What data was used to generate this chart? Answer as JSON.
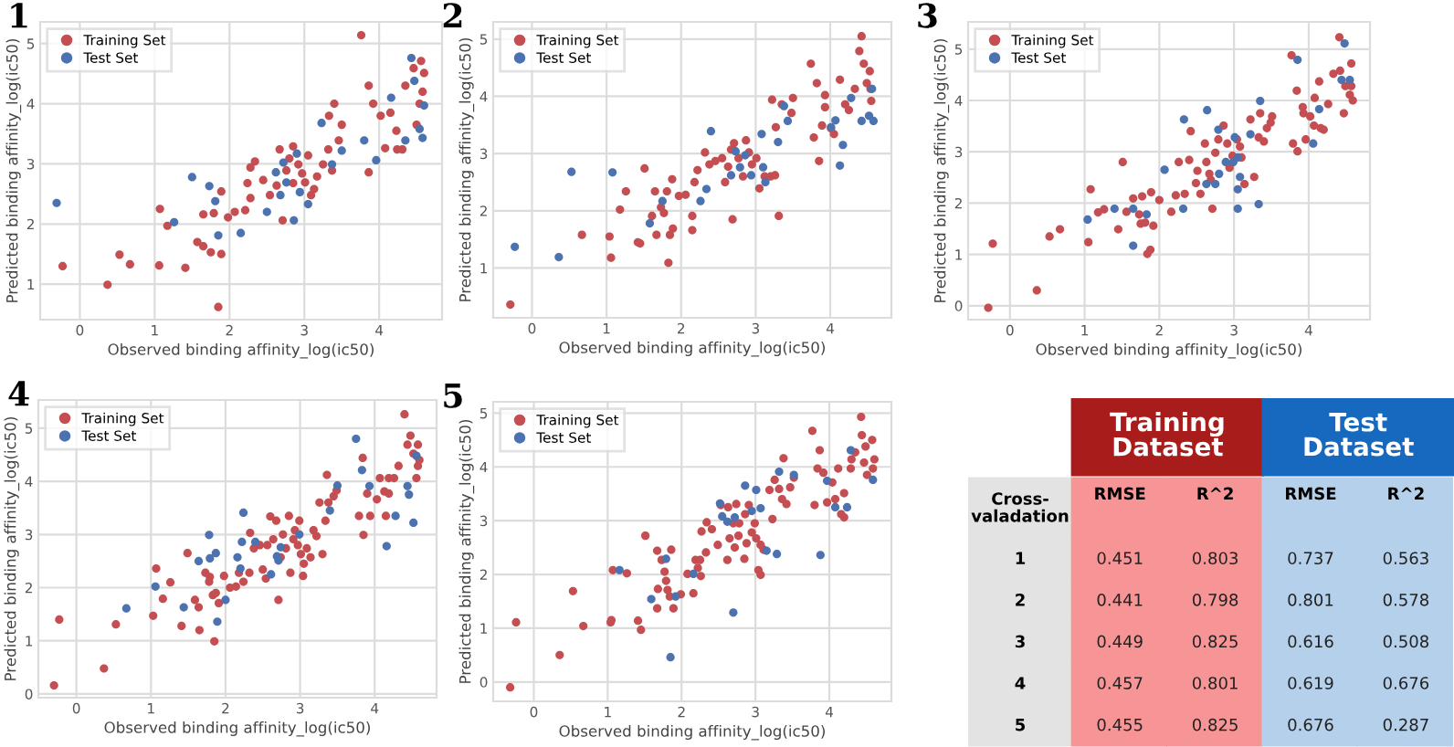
{
  "chart_data": [
    {
      "type": "scatter",
      "title": "1",
      "xlabel": "Observed binding affinity_log(ic50)",
      "ylabel": "Predicted binding affinity_log(ic50)",
      "xlim": [
        -0.53,
        4.84
      ],
      "ylim": [
        0.41,
        5.36
      ],
      "xticks": [
        0,
        1,
        2,
        3,
        4
      ],
      "yticks": [
        1,
        2,
        3,
        4,
        5
      ],
      "grid": true,
      "legend": "top left",
      "marker": "circle",
      "series": [
        {
          "name": "Training Set",
          "color": "#c44e52",
          "x": [
            -0.23,
            0.37,
            0.53,
            0.67,
            1.06,
            1.07,
            1.17,
            1.41,
            1.57,
            1.65,
            1.65,
            1.75,
            1.79,
            1.85,
            1.89,
            1.89,
            1.98,
            2.07,
            2.21,
            2.24,
            2.28,
            2.34,
            2.28,
            2.45,
            2.54,
            2.63,
            2.67,
            2.76,
            2.8,
            2.85,
            2.85,
            2.92,
            2.97,
            3.01,
            3.05,
            3.09,
            3.13,
            2.71,
            3.17,
            3.25,
            3.32,
            3.33,
            3.37,
            3.4,
            3.46,
            3.5,
            3.76,
            3.86,
            3.86,
            3.92,
            4.02,
            4.15,
            4.24,
            4.31,
            4.35,
            4.46,
            4.56,
            4.6,
            4.58,
            4.54,
            4.5,
            4.23,
            4.08
          ],
          "values": [
            1.3,
            0.99,
            1.49,
            1.33,
            1.31,
            2.25,
            1.97,
            1.27,
            1.7,
            1.63,
            2.16,
            1.53,
            2.18,
            0.62,
            2.54,
            1.5,
            2.11,
            2.2,
            2.23,
            2.68,
            2.94,
            3.04,
            2.43,
            2.73,
            2.48,
            2.64,
            3.24,
            2.89,
            3.09,
            2.68,
            3.29,
            2.99,
            2.84,
            2.69,
            3.14,
            2.48,
            2.58,
            2.06,
            2.79,
            2.99,
            3.24,
            3.8,
            2.89,
            4.0,
            3.39,
            3.65,
            5.14,
            4.3,
            2.86,
            4.0,
            3.8,
            3.85,
            3.24,
            3.24,
            4.3,
            4.59,
            4.71,
            4.51,
            4.2,
            4.0,
            3.65,
            3.55,
            3.26
          ]
        },
        {
          "name": "Test Set",
          "color": "#4c72b0",
          "x": [
            -0.31,
            1.26,
            1.5,
            1.73,
            1.81,
            1.85,
            2.15,
            2.5,
            2.62,
            2.68,
            2.72,
            2.76,
            2.86,
            2.9,
            2.94,
            3.05,
            3.23,
            3.37,
            3.5,
            3.8,
            3.96,
            4.16,
            4.35,
            4.43,
            4.47,
            4.54,
            4.58,
            4.6
          ],
          "values": [
            2.35,
            2.03,
            2.78,
            2.63,
            2.38,
            1.81,
            1.85,
            2.2,
            2.86,
            2.48,
            3.02,
            2.69,
            2.06,
            3.17,
            2.53,
            2.33,
            3.68,
            2.99,
            3.22,
            3.39,
            3.06,
            4.1,
            3.39,
            4.76,
            4.38,
            3.58,
            3.43,
            3.97
          ]
        }
      ]
    },
    {
      "type": "scatter",
      "title": "2",
      "xlabel": "Observed binding affinity_log(ic50)",
      "ylabel": "Predicted binding affinity_log(ic50)",
      "xlim": [
        -0.52,
        4.82
      ],
      "ylim": [
        0.13,
        5.3
      ],
      "xticks": [
        0,
        1,
        2,
        3,
        4
      ],
      "yticks": [
        1,
        2,
        3,
        4,
        5
      ],
      "grid": true,
      "legend": "top left",
      "marker": "circle",
      "series": [
        {
          "name": "Training Set",
          "color": "#c44e52",
          "x": [
            -0.29,
            0.67,
            1.04,
            1.06,
            1.18,
            1.26,
            1.42,
            1.45,
            1.51,
            1.61,
            1.65,
            1.67,
            1.73,
            1.77,
            1.81,
            1.85,
            1.83,
            1.88,
            1.89,
            1.97,
            2.06,
            2.15,
            2.15,
            2.18,
            2.22,
            2.32,
            2.38,
            2.46,
            2.55,
            2.59,
            2.63,
            2.67,
            2.71,
            2.69,
            2.77,
            2.83,
            2.87,
            2.91,
            2.95,
            3.01,
            3.05,
            3.12,
            3.2,
            3.22,
            3.26,
            3.27,
            3.31,
            3.35,
            3.48,
            3.5,
            3.74,
            3.78,
            3.82,
            3.85,
            3.89,
            3.93,
            3.93,
            4.01,
            4.05,
            4.13,
            4.2,
            4.25,
            4.33,
            4.39,
            4.42,
            4.45,
            4.49,
            4.53,
            4.55,
            4.54
          ],
          "values": [
            0.36,
            1.58,
            1.55,
            1.18,
            2.02,
            2.34,
            1.45,
            1.43,
            2.74,
            1.91,
            2.34,
            1.58,
            2.06,
            1.96,
            2.34,
            1.58,
            1.09,
            2.55,
            1.69,
            2.26,
            2.28,
            1.66,
            1.91,
            2.5,
            2.71,
            3.02,
            2.81,
            2.87,
            2.92,
            2.5,
            2.77,
            3.07,
            3.18,
            1.85,
            2.92,
            2.6,
            3.23,
            3.02,
            2.81,
            2.92,
            2.39,
            2.6,
            2.6,
            3.94,
            2.62,
            3.46,
            1.91,
            3.86,
            3.71,
            3.97,
            4.57,
            3.28,
            4.23,
            2.87,
            3.49,
            4.02,
            3.81,
            3.44,
            3.34,
            4.29,
            3.86,
            3.76,
            4.13,
            4.79,
            5.05,
            4.57,
            4.23,
            4.44,
            3.92,
            4.13
          ]
        },
        {
          "name": "Test Set",
          "color": "#4c72b0",
          "x": [
            -0.23,
            0.36,
            0.53,
            1.08,
            1.58,
            1.75,
            2.26,
            2.34,
            2.4,
            2.67,
            2.73,
            2.79,
            2.86,
            2.94,
            3.08,
            3.1,
            3.13,
            3.3,
            3.38,
            3.43,
            4.01,
            4.07,
            4.13,
            4.17,
            4.28,
            4.42,
            4.52,
            4.56,
            4.58
          ],
          "values": [
            1.37,
            1.19,
            2.68,
            2.67,
            1.78,
            2.17,
            2.17,
            2.38,
            3.39,
            2.62,
            3.04,
            2.76,
            2.97,
            2.62,
            3.34,
            2.76,
            2.5,
            3.2,
            3.83,
            3.57,
            3.46,
            3.58,
            2.79,
            3.15,
            3.97,
            3.57,
            3.66,
            4.13,
            3.57
          ]
        }
      ]
    },
    {
      "type": "scatter",
      "title": "3",
      "xlabel": "Observed binding affinity_log(ic50)",
      "ylabel": "Predicted binding affinity_log(ic50)",
      "xlim": [
        -0.56,
        4.82
      ],
      "ylim": [
        -0.27,
        5.53
      ],
      "xticks": [
        0,
        1,
        2,
        3,
        4
      ],
      "yticks": [
        0,
        1,
        2,
        3,
        4,
        5
      ],
      "grid": true,
      "legend": "top left",
      "marker": "circle",
      "series": [
        {
          "name": "Training Set",
          "color": "#c44e52",
          "x": [
            -0.29,
            -0.23,
            0.36,
            0.53,
            0.67,
            1.05,
            1.08,
            1.18,
            1.26,
            1.45,
            1.51,
            1.56,
            1.65,
            1.73,
            1.75,
            1.77,
            1.81,
            1.84,
            1.88,
            1.89,
            1.92,
            2.0,
            2.16,
            2.22,
            2.34,
            2.26,
            2.4,
            2.42,
            2.49,
            2.51,
            2.55,
            2.61,
            2.63,
            2.67,
            2.69,
            2.71,
            2.75,
            2.79,
            2.86,
            2.91,
            2.94,
            2.98,
            3.04,
            3.08,
            3.1,
            3.14,
            3.22,
            3.27,
            3.33,
            3.35,
            3.4,
            3.44,
            3.49,
            3.51,
            3.77,
            3.79,
            3.85,
            3.84,
            3.92,
            3.93,
            3.96,
            4.02,
            4.07,
            4.08,
            4.14,
            4.16,
            4.2,
            4.26,
            4.33,
            4.41,
            4.42,
            4.47,
            4.49,
            4.55,
            4.57,
            4.59,
            4.57
          ],
          "values": [
            -0.04,
            1.21,
            0.3,
            1.35,
            1.49,
            1.24,
            2.27,
            1.82,
            1.88,
            1.49,
            2.8,
            1.83,
            2.09,
            1.78,
            1.6,
            2.13,
            1.62,
            1.01,
            1.09,
            2.21,
            1.56,
            2.06,
            1.83,
            2.15,
            2.18,
            2.8,
            2.84,
            3.4,
            2.39,
            2.63,
            2.18,
            3.16,
            2.8,
            2.57,
            2.45,
            1.89,
            2.98,
            3.24,
            3.51,
            3.16,
            2.69,
            2.92,
            3.24,
            3.1,
            2.89,
            2.37,
            3.63,
            2.51,
            3.28,
            3.75,
            3.2,
            3.46,
            3.57,
            3.69,
            4.88,
            3.16,
            3.01,
            4.19,
            3.87,
            3.75,
            3.24,
            3.69,
            3.51,
            4.05,
            4.37,
            3.46,
            3.43,
            3.93,
            4.52,
            5.23,
            4.58,
            3.75,
            4.28,
            4.11,
            4.72,
            4.0,
            4.28
          ]
        },
        {
          "name": "Test Set",
          "color": "#4c72b0",
          "x": [
            1.04,
            1.4,
            1.65,
            1.65,
            1.83,
            2.07,
            2.32,
            2.33,
            2.63,
            2.64,
            2.75,
            2.79,
            2.8,
            2.89,
            2.99,
            3.01,
            3.05,
            3.05,
            3.05,
            3.08,
            3.22,
            3.33,
            3.35,
            3.85,
            4.06,
            4.14,
            4.44,
            4.48,
            4.55
          ],
          "values": [
            1.68,
            1.89,
            1.17,
            1.89,
            1.78,
            2.65,
            1.89,
            3.63,
            2.37,
            3.81,
            2.37,
            3.43,
            2.57,
            2.8,
            2.8,
            3.28,
            2.89,
            2.27,
            1.89,
            2.51,
            3.34,
            1.98,
            3.99,
            4.79,
            3.16,
            3.83,
            4.4,
            5.11,
            4.4
          ]
        }
      ]
    },
    {
      "type": "scatter",
      "title": "4",
      "xlabel": "Observed binding affinity_log(ic50)",
      "ylabel": "Predicted binding affinity_log(ic50)",
      "xlim": [
        -0.51,
        4.83
      ],
      "ylim": [
        -0.07,
        5.53
      ],
      "xticks": [
        0,
        1,
        2,
        3,
        4
      ],
      "yticks": [
        0,
        1,
        2,
        3,
        4,
        5
      ],
      "grid": true,
      "legend": "top left",
      "marker": "circle",
      "series": [
        {
          "name": "Training Set",
          "color": "#c44e52",
          "x": [
            -0.3,
            -0.23,
            0.37,
            0.53,
            1.03,
            1.07,
            1.16,
            1.26,
            1.41,
            1.49,
            1.59,
            1.64,
            1.65,
            1.73,
            1.78,
            1.79,
            1.83,
            1.85,
            1.87,
            1.91,
            1.98,
            2.06,
            2.14,
            2.18,
            2.24,
            2.32,
            2.33,
            2.38,
            2.46,
            2.5,
            2.54,
            2.56,
            2.6,
            2.64,
            2.68,
            2.71,
            2.74,
            2.77,
            2.81,
            2.85,
            2.87,
            2.91,
            2.93,
            2.97,
            2.99,
            3.01,
            3.04,
            3.05,
            3.09,
            3.14,
            3.18,
            3.22,
            3.26,
            3.3,
            3.34,
            3.36,
            3.38,
            3.45,
            3.49,
            3.79,
            3.84,
            3.85,
            3.9,
            3.94,
            4.03,
            4.07,
            4.13,
            4.15,
            4.19,
            4.19,
            4.26,
            4.32,
            4.4,
            4.44,
            4.48,
            4.52,
            4.56,
            4.58,
            4.58,
            4.6
          ],
          "values": [
            0.16,
            1.4,
            0.48,
            1.31,
            1.47,
            2.36,
            1.79,
            2.1,
            1.28,
            2.65,
            1.77,
            1.63,
            1.2,
            2.28,
            2.11,
            2.2,
            1.86,
            0.99,
            1.9,
            1.71,
            2.22,
            2.0,
            2.02,
            2.28,
            2.11,
            2.28,
            3.03,
            2.74,
            2.8,
            2.34,
            2.17,
            2.8,
            3.34,
            2.91,
            3.26,
            1.77,
            2.57,
            3.0,
            2.74,
            3.35,
            2.28,
            2.91,
            3.08,
            2.8,
            3.26,
            2.63,
            2.22,
            2.45,
            2.74,
            2.57,
            3.08,
            2.97,
            3.6,
            2.63,
            3.26,
            4.12,
            3.6,
            3.72,
            3.83,
            3.35,
            4.44,
            2.99,
            3.77,
            3.35,
            3.66,
            4.06,
            3.81,
            3.35,
            3.77,
            4.06,
            4.06,
            4.29,
            5.26,
            4.69,
            4.86,
            4.52,
            4.06,
            4.69,
            4.29,
            4.4
          ]
        },
        {
          "name": "Test Set",
          "color": "#4c72b0",
          "x": [
            0.67,
            1.06,
            1.44,
            1.64,
            1.78,
            1.79,
            1.87,
            1.89,
            2.0,
            2.16,
            2.2,
            2.22,
            2.24,
            2.4,
            2.61,
            2.69,
            2.71,
            2.74,
            2.99,
            3.4,
            3.5,
            3.75,
            3.83,
            3.93,
            4.16,
            4.28,
            4.44,
            4.46,
            4.52,
            4.56
          ],
          "values": [
            1.61,
            2.02,
            1.63,
            2.5,
            2.99,
            2.55,
            2.65,
            1.36,
            1.77,
            2.57,
            2.36,
            2.86,
            3.41,
            2.86,
            2.25,
            2.59,
            2.51,
            2.76,
            3.0,
            3.45,
            3.92,
            4.8,
            4.21,
            3.91,
            2.78,
            3.35,
            3.91,
            3.75,
            3.22,
            4.48
          ]
        }
      ]
    },
    {
      "type": "scatter",
      "title": "5",
      "xlabel": "Observed binding affinity_log(ic50)",
      "ylabel": "Predicted binding affinity_log(ic50)",
      "xlim": [
        -0.55,
        4.84
      ],
      "ylim": [
        -0.36,
        5.21
      ],
      "xticks": [
        0,
        1,
        2,
        3,
        4
      ],
      "yticks": [
        0,
        1,
        2,
        3,
        4,
        5
      ],
      "grid": true,
      "legend": "top left",
      "marker": "circle",
      "series": [
        {
          "name": "Training Set",
          "color": "#c44e52",
          "x": [
            -0.32,
            -0.24,
            0.35,
            0.53,
            0.67,
            1.04,
            1.05,
            1.07,
            1.26,
            1.41,
            1.45,
            1.51,
            1.67,
            1.68,
            1.67,
            1.73,
            1.77,
            1.79,
            1.81,
            1.84,
            1.86,
            1.89,
            1.99,
            2.08,
            2.16,
            2.19,
            2.25,
            2.22,
            2.26,
            2.33,
            2.27,
            2.34,
            2.41,
            2.49,
            2.53,
            2.62,
            2.63,
            2.65,
            2.7,
            2.72,
            2.74,
            2.77,
            2.78,
            2.85,
            2.86,
            2.88,
            2.91,
            2.95,
            2.99,
            3.01,
            3.04,
            3.07,
            3.07,
            3.11,
            3.19,
            3.23,
            3.26,
            3.32,
            3.36,
            3.38,
            3.42,
            3.47,
            3.52,
            3.77,
            3.8,
            3.84,
            3.87,
            3.92,
            3.97,
            4.04,
            4.08,
            4.12,
            4.16,
            4.2,
            4.2,
            4.29,
            4.3,
            4.35,
            4.43,
            4.44,
            4.47,
            4.49,
            4.51,
            4.58,
            4.59,
            4.61
          ],
          "values": [
            -0.1,
            1.11,
            0.5,
            1.69,
            1.04,
            1.11,
            1.15,
            2.08,
            2.02,
            1.14,
            0.97,
            2.72,
            1.37,
            1.73,
            2.44,
            2.27,
            2.05,
            1.88,
            1.71,
            1.59,
            2.46,
            1.37,
            1.63,
            2.01,
            1.65,
            2.27,
            2.27,
            2.12,
            1.97,
            2.41,
            2.8,
            2.97,
            2.84,
            2.55,
            3.29,
            2.27,
            3.25,
            2.67,
            2.95,
            2.5,
            3.31,
            2.72,
            2.95,
            2.29,
            3.12,
            2.58,
            3.29,
            2.78,
            2.95,
            2.67,
            2.08,
            1.99,
            2.55,
            2.46,
            3.57,
            3.03,
            3.76,
            3.59,
            3.4,
            4.16,
            3.31,
            3.62,
            3.8,
            4.67,
            3.29,
            3.97,
            4.31,
            3.89,
            3.34,
            3.71,
            3.4,
            3.97,
            3.12,
            3.06,
            3.51,
            3.97,
            4.14,
            4.27,
            4.93,
            4.59,
            4.08,
            4.38,
            3.85,
            4.5,
            3.97,
            4.14
          ]
        },
        {
          "name": "Test Set",
          "color": "#4c72b0",
          "x": [
            1.16,
            1.59,
            1.79,
            1.85,
            1.92,
            2.16,
            2.52,
            2.55,
            2.62,
            2.7,
            2.72,
            2.86,
            2.95,
            3.01,
            3.07,
            3.15,
            3.29,
            3.32,
            3.52,
            3.88,
            3.97,
            4.08,
            4.24,
            4.29,
            4.59
          ],
          "values": [
            2.08,
            1.54,
            2.29,
            0.46,
            1.59,
            2.01,
            3.32,
            3.08,
            2.98,
            1.29,
            3.06,
            3.65,
            3.18,
            3.57,
            3.23,
            2.44,
            2.38,
            3.91,
            3.85,
            2.36,
            3.74,
            3.25,
            3.25,
            4.31,
            3.76
          ]
        }
      ]
    },
    {
      "type": "heatmap",
      "categories": [
        "RMSE",
        "R^2",
        "RMSE",
        "R^2"
      ],
      "y_categories": [
        "1",
        "2",
        "3",
        "4",
        "5"
      ],
      "ylabel": "Cross-valadation",
      "cells": [
        [
          0.451,
          0.803,
          0.737,
          0.563
        ],
        [
          0.441,
          0.798,
          0.801,
          0.578
        ],
        [
          0.449,
          0.825,
          0.616,
          0.508
        ],
        [
          0.457,
          0.801,
          0.619,
          0.676
        ],
        [
          0.455,
          0.825,
          0.676,
          0.287
        ]
      ],
      "colors": [
        "#f79596",
        "#f79596",
        "#b5d0ea",
        "#b5d0ea"
      ],
      "data_labels": true,
      "annotations": [
        "Training Dataset",
        "Test Dataset"
      ]
    }
  ]
}
